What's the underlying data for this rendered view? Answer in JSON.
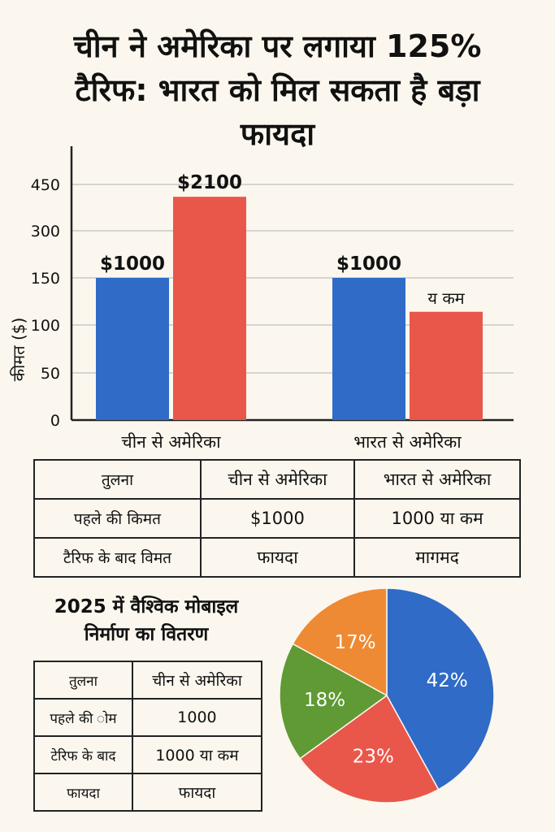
{
  "title": {
    "line1": "चीन ने अमेरिका पर लगाया 125%",
    "line2": "टैरिफ: भारत को मिल सकता है बड़ा",
    "line3": "फायदा"
  },
  "chart_data": [
    {
      "type": "bar",
      "ylabel": "कीमत ($)",
      "yticks": [
        0,
        50,
        100,
        150,
        300,
        450
      ],
      "categories": [
        "चीन से अमेरिका",
        "भारत से अमेरिका"
      ],
      "series": [
        {
          "color": "#2f6bc7",
          "values": [
            150,
            150
          ],
          "labels": [
            "$1000",
            "$1000"
          ]
        },
        {
          "color": "#e9574b",
          "values": [
            410,
            114
          ],
          "labels": [
            "$2100",
            "य कम"
          ]
        }
      ],
      "grid": true
    },
    {
      "type": "pie",
      "title": "2025 में वैश्विक मोबाइल निर्माण का वितरण",
      "slices": [
        {
          "value": 42,
          "label": "42%",
          "color": "#2f6bc7"
        },
        {
          "value": 23,
          "label": "23%",
          "color": "#e9574b"
        },
        {
          "value": 18,
          "label": "18%",
          "color": "#5f9a34"
        },
        {
          "value": 17,
          "label": "17%",
          "color": "#ee8a34"
        }
      ]
    }
  ],
  "comparison_table": {
    "rows": [
      [
        "तुलना",
        "चीन से अमेरिका",
        "भारत से अमेरिका"
      ],
      [
        "पहले की किमत",
        "$1000",
        "1000 या कम"
      ],
      [
        "टैरिफ के बाद विमत",
        "फायदा",
        "मागमद"
      ]
    ]
  },
  "pie_section": {
    "title_line1": "2025 में वैश्विक मोबाइल",
    "title_line2": "निर्माण का वितरण"
  },
  "mini_table": {
    "rows": [
      [
        "तुलना",
        "चीन से अमेरिका"
      ],
      [
        "पहले की ोम",
        "1000"
      ],
      [
        "टेरिफ के बाद",
        "1000 या कम"
      ],
      [
        "फायदा",
        "फायदा"
      ]
    ]
  }
}
